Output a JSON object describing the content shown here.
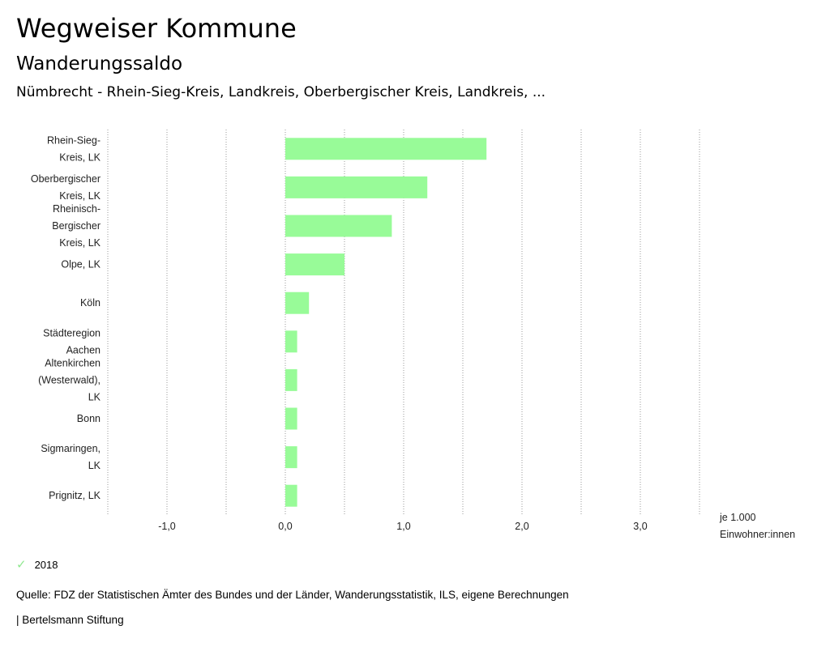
{
  "header": {
    "title": "Wegweiser Kommune",
    "subtitle": "Wanderungssaldo",
    "region": "Nümbrecht - Rhein-Sieg-Kreis, Landkreis, Oberbergischer Kreis, Landkreis, ..."
  },
  "chart_data": {
    "type": "bar",
    "orientation": "horizontal",
    "categories": [
      [
        "Rhein-Sieg-",
        "Kreis, LK"
      ],
      [
        "Oberbergischer",
        "Kreis, LK"
      ],
      [
        "Rheinisch-",
        "Bergischer",
        "Kreis, LK"
      ],
      [
        "Olpe, LK"
      ],
      [
        "Köln"
      ],
      [
        "Städteregion",
        "Aachen"
      ],
      [
        "Altenkirchen",
        "(Westerwald),",
        "LK"
      ],
      [
        "Bonn"
      ],
      [
        "Sigmaringen,",
        "LK"
      ],
      [
        "Prignitz, LK"
      ]
    ],
    "series": [
      {
        "name": "2018",
        "values": [
          1.7,
          1.2,
          0.9,
          0.5,
          0.2,
          0.1,
          0.1,
          0.1,
          0.1,
          0.1
        ]
      }
    ],
    "xlim": [
      -1.5,
      3.5
    ],
    "xticks": [
      -1.0,
      0.0,
      1.0,
      2.0,
      3.0
    ],
    "xtick_labels": [
      "-1,0",
      "0,0",
      "1,0",
      "2,0",
      "3,0"
    ],
    "gridlines": [
      -1.5,
      -1.0,
      -0.5,
      0.0,
      0.5,
      1.0,
      1.5,
      2.0,
      2.5,
      3.0,
      3.5
    ],
    "unit_label": [
      "je 1.000",
      "Einwohner:innen"
    ],
    "bar_color": "#98fb98",
    "grid": true
  },
  "legend": {
    "label": "2018",
    "color": "#98fb98"
  },
  "footer": {
    "source": "Quelle: FDZ der Statistischen Ämter des Bundes und der Länder, Wanderungsstatistik, ILS, eigene Berechnungen",
    "publisher": "| Bertelsmann Stiftung"
  }
}
